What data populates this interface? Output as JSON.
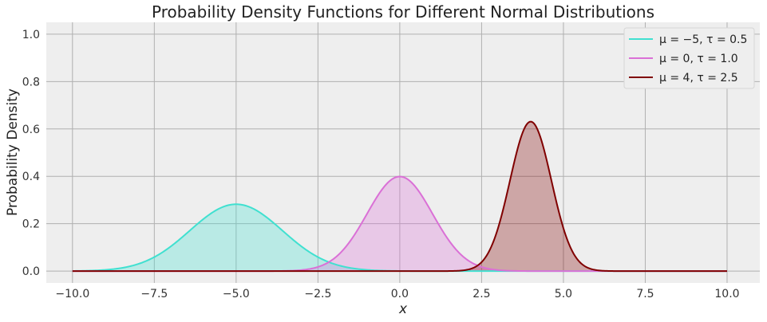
{
  "chart_data": {
    "type": "area",
    "title": "Probability Density Functions for Different Normal Distributions",
    "xlabel": "x",
    "ylabel": "Probability Density",
    "xlim": [
      -10.8,
      11.0
    ],
    "ylim": [
      -0.05,
      1.05
    ],
    "x_ticks": [
      -10.0,
      -7.5,
      -5.0,
      -2.5,
      0.0,
      2.5,
      5.0,
      7.5,
      10.0
    ],
    "x_tick_labels": [
      "−10.0",
      "−7.5",
      "−5.0",
      "−2.5",
      "0.0",
      "2.5",
      "5.0",
      "7.5",
      "10.0"
    ],
    "y_ticks": [
      0.0,
      0.2,
      0.4,
      0.6,
      0.8,
      1.0
    ],
    "y_tick_labels": [
      "0.0",
      "0.2",
      "0.4",
      "0.6",
      "0.8",
      "1.0"
    ],
    "grid": true,
    "legend_position": "top-right",
    "x_range": [
      -10,
      10
    ],
    "series": [
      {
        "name": "μ = −5,  τ = 0.5",
        "mu": -5,
        "tau": 0.5,
        "color": "#40e0d0"
      },
      {
        "name": "μ = 0,  τ = 1.0",
        "mu": 0,
        "tau": 1.0,
        "color": "#da70d6"
      },
      {
        "name": "μ = 4,  τ = 2.5",
        "mu": 4,
        "tau": 2.5,
        "color": "#800000"
      }
    ]
  }
}
